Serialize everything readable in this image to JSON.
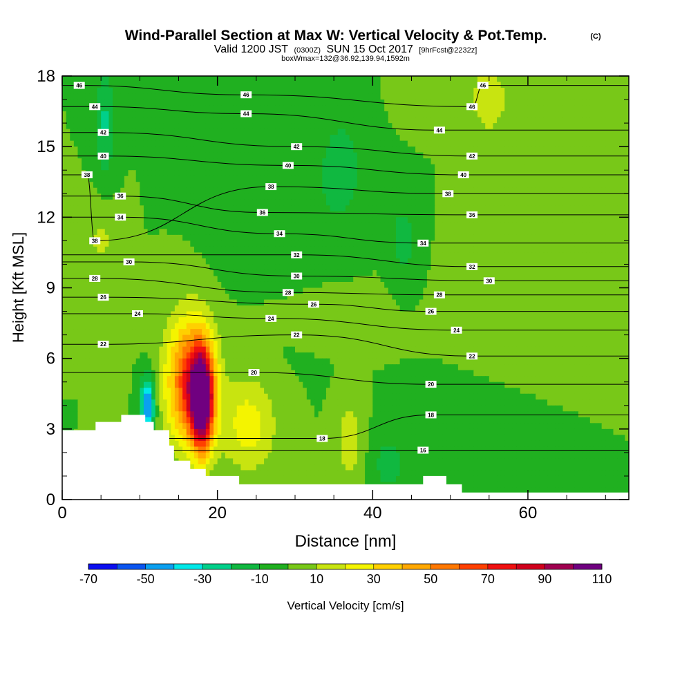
{
  "chart_data": {
    "type": "heatmap",
    "title": "Wind-Parallel Section at Max W: Vertical Velocity & Pot.Temp.",
    "title_tag": "(C)",
    "subtitle": {
      "valid": "Valid 1200 JST",
      "utc": "(0300Z)",
      "date": "SUN 15 Oct 2017",
      "fcst": "[9hrFcst@2232z]"
    },
    "box_info": "boxWmax=132@36.92,139.94,1592m",
    "xlabel": "Distance [nm]",
    "ylabel": "Height [Kft MSL]",
    "xlim": [
      0,
      73
    ],
    "ylim": [
      0,
      18
    ],
    "x_ticks": [
      "0",
      "20",
      "40",
      "60"
    ],
    "y_ticks": [
      "0",
      "3",
      "6",
      "9",
      "12",
      "15",
      "18"
    ],
    "colorbar": {
      "label": "Vertical Velocity [cm/s]",
      "tick_labels": [
        "-70",
        "-50",
        "-30",
        "-10",
        "10",
        "30",
        "50",
        "70",
        "90",
        "110"
      ],
      "levels": [
        -70,
        -60,
        -50,
        -40,
        -30,
        -20,
        -10,
        0,
        10,
        20,
        30,
        40,
        50,
        60,
        70,
        80,
        90,
        100,
        110
      ],
      "colors": [
        "#0a0ef0",
        "#0a55f0",
        "#0aa0f0",
        "#00e8e8",
        "#00d08a",
        "#10b840",
        "#20b020",
        "#78c818",
        "#c8e410",
        "#f4f400",
        "#ffd000",
        "#ffa800",
        "#ff7800",
        "#ff4000",
        "#f01010",
        "#d0001c",
        "#a00050",
        "#700080"
      ]
    },
    "background_w_cms": 0,
    "w_features": [
      {
        "x": 18.0,
        "y": 4.2,
        "peak": 110,
        "rx": 1.4,
        "ry": 2.0
      },
      {
        "x": 16.5,
        "y": 5.0,
        "peak": 70,
        "rx": 3.0,
        "ry": 2.6
      },
      {
        "x": 24.0,
        "y": 3.2,
        "peak": 25,
        "rx": 3.5,
        "ry": 2.0
      },
      {
        "x": 11.0,
        "y": 4.0,
        "peak": -55,
        "rx": 0.9,
        "ry": 1.2
      },
      {
        "x": 36.0,
        "y": 14.0,
        "peak": -15,
        "rx": 3.0,
        "ry": 2.5
      },
      {
        "x": 5.5,
        "y": 16.0,
        "peak": -22,
        "rx": 1.2,
        "ry": 2.2
      },
      {
        "x": 44.0,
        "y": 11.0,
        "peak": -18,
        "rx": 1.5,
        "ry": 1.5
      },
      {
        "x": 55.0,
        "y": 17.0,
        "peak": 18,
        "rx": 2.5,
        "ry": 1.5
      },
      {
        "x": 27.0,
        "y": 12.0,
        "peak": -10,
        "rx": 6.0,
        "ry": 4.0
      },
      {
        "x": 60.0,
        "y": 8.5,
        "peak": 10,
        "rx": 6.0,
        "ry": 2.0
      },
      {
        "x": 5.0,
        "y": 11.0,
        "peak": 12,
        "rx": 2.0,
        "ry": 1.5
      },
      {
        "x": 30.0,
        "y": 8.0,
        "peak": 6,
        "rx": 8.0,
        "ry": 1.2
      },
      {
        "x": 51.0,
        "y": 2.5,
        "peak": -10,
        "rx": 6.0,
        "ry": 1.5
      },
      {
        "x": 42.0,
        "y": 1.5,
        "peak": -15,
        "rx": 2.0,
        "ry": 1.2
      },
      {
        "x": 37.0,
        "y": 2.5,
        "peak": 20,
        "rx": 1.5,
        "ry": 1.5
      },
      {
        "x": 47.0,
        "y": 17.5,
        "peak": 10,
        "rx": 3.0,
        "ry": 1.0
      }
    ],
    "terrain": [
      {
        "x": 0,
        "h": 2.95
      },
      {
        "x": 4.3,
        "h": 2.95
      },
      {
        "x": 4.3,
        "h": 3.3
      },
      {
        "x": 7.6,
        "h": 3.3
      },
      {
        "x": 7.6,
        "h": 3.6
      },
      {
        "x": 10.7,
        "h": 3.6
      },
      {
        "x": 10.7,
        "h": 3.3
      },
      {
        "x": 11.8,
        "h": 3.3
      },
      {
        "x": 11.8,
        "h": 2.95
      },
      {
        "x": 13.8,
        "h": 2.95
      },
      {
        "x": 13.8,
        "h": 2.3
      },
      {
        "x": 14.4,
        "h": 2.3
      },
      {
        "x": 14.4,
        "h": 1.65
      },
      {
        "x": 16.5,
        "h": 1.65
      },
      {
        "x": 16.5,
        "h": 1.3
      },
      {
        "x": 18.5,
        "h": 1.3
      },
      {
        "x": 18.5,
        "h": 1.0
      },
      {
        "x": 22.8,
        "h": 1.0
      },
      {
        "x": 22.8,
        "h": 0.65
      },
      {
        "x": 46.5,
        "h": 0.65
      },
      {
        "x": 46.5,
        "h": 1.0
      },
      {
        "x": 49.5,
        "h": 1.0
      },
      {
        "x": 49.5,
        "h": 0.65
      },
      {
        "x": 51.5,
        "h": 0.65
      },
      {
        "x": 51.5,
        "h": 0.3
      },
      {
        "x": 73,
        "h": 0.3
      }
    ],
    "theta_labels": [
      {
        "text": "46",
        "x": 2.2,
        "y": 17.6
      },
      {
        "text": "46",
        "x": 23.7,
        "y": 17.2
      },
      {
        "text": "46",
        "x": 54.2,
        "y": 17.6
      },
      {
        "text": "44",
        "x": 4.2,
        "y": 16.7
      },
      {
        "text": "44",
        "x": 23.7,
        "y": 16.4
      },
      {
        "text": "46",
        "x": 52.8,
        "y": 16.7
      },
      {
        "text": "42",
        "x": 5.3,
        "y": 15.6
      },
      {
        "text": "44",
        "x": 48.6,
        "y": 15.7
      },
      {
        "text": "42",
        "x": 30.2,
        "y": 15.0
      },
      {
        "text": "40",
        "x": 5.3,
        "y": 14.6
      },
      {
        "text": "42",
        "x": 52.8,
        "y": 14.6
      },
      {
        "text": "40",
        "x": 29.1,
        "y": 14.2
      },
      {
        "text": "38",
        "x": 3.2,
        "y": 13.8
      },
      {
        "text": "40",
        "x": 51.7,
        "y": 13.8
      },
      {
        "text": "38",
        "x": 26.9,
        "y": 13.3
      },
      {
        "text": "36",
        "x": 7.5,
        "y": 12.9
      },
      {
        "text": "38",
        "x": 49.7,
        "y": 13.0
      },
      {
        "text": "36",
        "x": 25.8,
        "y": 12.2
      },
      {
        "text": "34",
        "x": 7.5,
        "y": 12.0
      },
      {
        "text": "36",
        "x": 52.8,
        "y": 12.1
      },
      {
        "text": "34",
        "x": 28.0,
        "y": 11.3
      },
      {
        "text": "38",
        "x": 4.2,
        "y": 11.0
      },
      {
        "text": "34",
        "x": 46.5,
        "y": 10.9
      },
      {
        "text": "32",
        "x": 30.2,
        "y": 10.4
      },
      {
        "text": "30",
        "x": 8.6,
        "y": 10.1
      },
      {
        "text": "32",
        "x": 52.8,
        "y": 9.9
      },
      {
        "text": "30",
        "x": 30.2,
        "y": 9.5
      },
      {
        "text": "28",
        "x": 4.2,
        "y": 9.4
      },
      {
        "text": "30",
        "x": 55.0,
        "y": 9.3
      },
      {
        "text": "28",
        "x": 29.1,
        "y": 8.8
      },
      {
        "text": "26",
        "x": 5.3,
        "y": 8.6
      },
      {
        "text": "28",
        "x": 48.6,
        "y": 8.7
      },
      {
        "text": "26",
        "x": 32.4,
        "y": 8.3
      },
      {
        "text": "24",
        "x": 9.7,
        "y": 7.9
      },
      {
        "text": "26",
        "x": 47.5,
        "y": 8.0
      },
      {
        "text": "24",
        "x": 26.9,
        "y": 7.7
      },
      {
        "text": "22",
        "x": 5.3,
        "y": 6.6
      },
      {
        "text": "24",
        "x": 50.8,
        "y": 7.2
      },
      {
        "text": "22",
        "x": 30.2,
        "y": 7.0
      },
      {
        "text": "20",
        "x": 24.7,
        "y": 5.4
      },
      {
        "text": "22",
        "x": 52.8,
        "y": 6.1
      },
      {
        "text": "20",
        "x": 47.5,
        "y": 4.9
      },
      {
        "text": "18",
        "x": 47.5,
        "y": 3.6
      },
      {
        "text": "18",
        "x": 33.5,
        "y": 2.6
      },
      {
        "text": "16",
        "x": 46.5,
        "y": 2.1
      }
    ]
  }
}
